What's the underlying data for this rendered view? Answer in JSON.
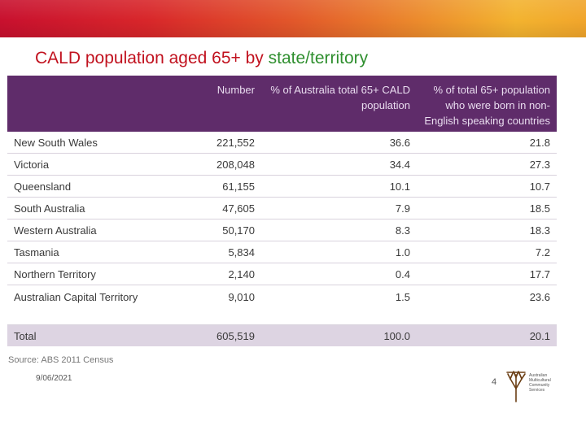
{
  "slide": {
    "title_main": "CALD population aged 65+ by ",
    "title_highlight": "state/territory",
    "source": "Source: ABS 2011 Census",
    "date": "9/06/2021",
    "page_number": "4"
  },
  "table": {
    "headers": [
      "",
      "Number",
      "% of Australia total 65+ CALD population",
      "% of total 65+ population who were born in non-English speaking countries"
    ],
    "rows": [
      {
        "name": "New South Wales",
        "number": "221,552",
        "pct_cald": "36.6",
        "pct_total": "21.8"
      },
      {
        "name": "Victoria",
        "number": "208,048",
        "pct_cald": "34.4",
        "pct_total": "27.3"
      },
      {
        "name": "Queensland",
        "number": "61,155",
        "pct_cald": "10.1",
        "pct_total": "10.7"
      },
      {
        "name": "South Australia",
        "number": "47,605",
        "pct_cald": "7.9",
        "pct_total": "18.5"
      },
      {
        "name": "Western Australia",
        "number": "50,170",
        "pct_cald": "8.3",
        "pct_total": "18.3"
      },
      {
        "name": "Tasmania",
        "number": "5,834",
        "pct_cald": "1.0",
        "pct_total": "7.2"
      },
      {
        "name": "Northern Territory",
        "number": "2,140",
        "pct_cald": "0.4",
        "pct_total": "17.7"
      },
      {
        "name": "Australian Capital Territory",
        "number": "9,010",
        "pct_cald": "1.5",
        "pct_total": "23.6"
      }
    ],
    "total": {
      "name": "Total",
      "number": "605,519",
      "pct_cald": "100.0",
      "pct_total": "20.1"
    }
  },
  "logo": {
    "lines": [
      "Australian",
      "Multicultural",
      "Community",
      "Services"
    ],
    "color": "#6b3e14"
  },
  "colors": {
    "header_bg": "#5f2c6a",
    "total_bg": "#ddd4e2",
    "title_red": "#c1121f",
    "title_green": "#2f8f2f"
  }
}
